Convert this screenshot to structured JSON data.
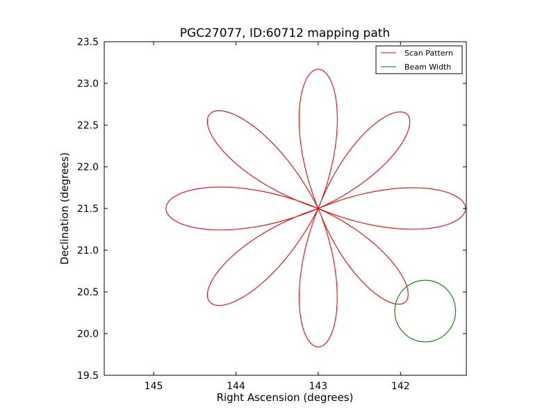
{
  "chart_data": {
    "type": "line",
    "title": "PGC27077, ID:60712 mapping path",
    "xlabel": "Right Ascension (degrees)",
    "ylabel": "Declination (degrees)",
    "xlim": [
      145.6,
      141.2
    ],
    "ylim": [
      19.5,
      23.5
    ],
    "x_inverted": true,
    "x_ticks": [
      145,
      144,
      143,
      142
    ],
    "x_tick_labels": [
      "145",
      "144",
      "143",
      "142"
    ],
    "y_ticks": [
      19.5,
      20.0,
      20.5,
      21.0,
      21.5,
      22.0,
      22.5,
      23.0,
      23.5
    ],
    "y_tick_labels": [
      "19.5",
      "20.0",
      "20.5",
      "21.0",
      "21.5",
      "22.0",
      "22.5",
      "23.0",
      "23.5"
    ],
    "grid": false,
    "legend_position": "top-right",
    "center": {
      "x": 143.0,
      "y": 21.5
    },
    "series": [
      {
        "name": "Scan Pattern",
        "color": "#ff0000",
        "shape": "8-petal rose curve centered at (143.0, 21.5); petal tips in data units",
        "petal_tips": [
          {
            "x": 143.0,
            "y": 23.17
          },
          {
            "x": 141.92,
            "y": 22.63
          },
          {
            "x": 141.21,
            "y": 21.5
          },
          {
            "x": 141.94,
            "y": 20.38
          },
          {
            "x": 143.0,
            "y": 19.84
          },
          {
            "x": 144.32,
            "y": 20.38
          },
          {
            "x": 144.85,
            "y": 21.5
          },
          {
            "x": 144.32,
            "y": 22.63
          }
        ]
      },
      {
        "name": "Beam Width",
        "color": "#008000",
        "shape": "circle",
        "center": {
          "x": 141.7,
          "y": 20.27
        },
        "radius": 0.37
      }
    ]
  }
}
